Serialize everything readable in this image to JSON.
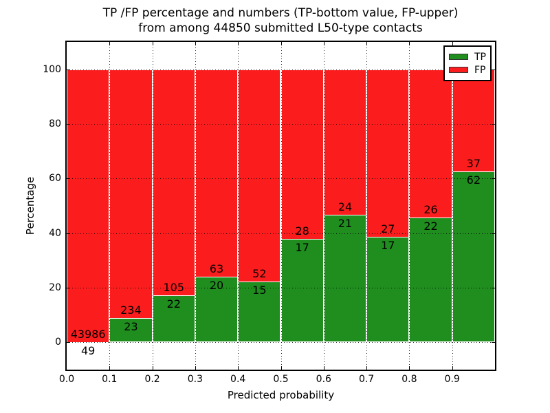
{
  "title": {
    "line1": "TP /FP percentage and numbers (TP-bottom value, FP-upper)",
    "line2": "from among 44850 submitted L50-type contacts"
  },
  "chart_data": {
    "type": "bar",
    "stacked": true,
    "normalized_to_percent": true,
    "title": "TP /FP percentage and numbers (TP-bottom value, FP-upper) from among 44850 submitted L50-type contacts",
    "xlabel": "Predicted probability",
    "ylabel": "Percentage",
    "categories": [
      "0.0-0.1",
      "0.1-0.2",
      "0.2-0.3",
      "0.3-0.4",
      "0.4-0.5",
      "0.5-0.6",
      "0.6-0.7",
      "0.7-0.8",
      "0.8-0.9",
      "0.9-1.0"
    ],
    "series": [
      {
        "name": "TP",
        "color": "#1f8e1f",
        "counts": [
          49,
          23,
          22,
          20,
          15,
          17,
          21,
          17,
          22,
          62
        ]
      },
      {
        "name": "FP",
        "color": "#fb1d1d",
        "counts": [
          43986,
          234,
          105,
          63,
          52,
          28,
          24,
          27,
          26,
          37
        ]
      }
    ],
    "tp_percent_of_bin": [
      0.11,
      8.95,
      17.32,
      24.1,
      22.39,
      37.78,
      46.67,
      38.64,
      45.83,
      62.63
    ],
    "total_contacts": 44850,
    "xlim": [
      0.0,
      1.0
    ],
    "ylim": [
      -10,
      110
    ],
    "xticks": [
      "0.0",
      "0.1",
      "0.2",
      "0.3",
      "0.4",
      "0.5",
      "0.6",
      "0.7",
      "0.8",
      "0.9"
    ],
    "yticks": [
      0,
      20,
      40,
      60,
      80,
      100
    ],
    "grid": true,
    "grid_style": "dotted-black-over-bars",
    "legend": {
      "position": "upper right"
    },
    "frame_color": "#000000",
    "background_color": "#ffffff"
  }
}
